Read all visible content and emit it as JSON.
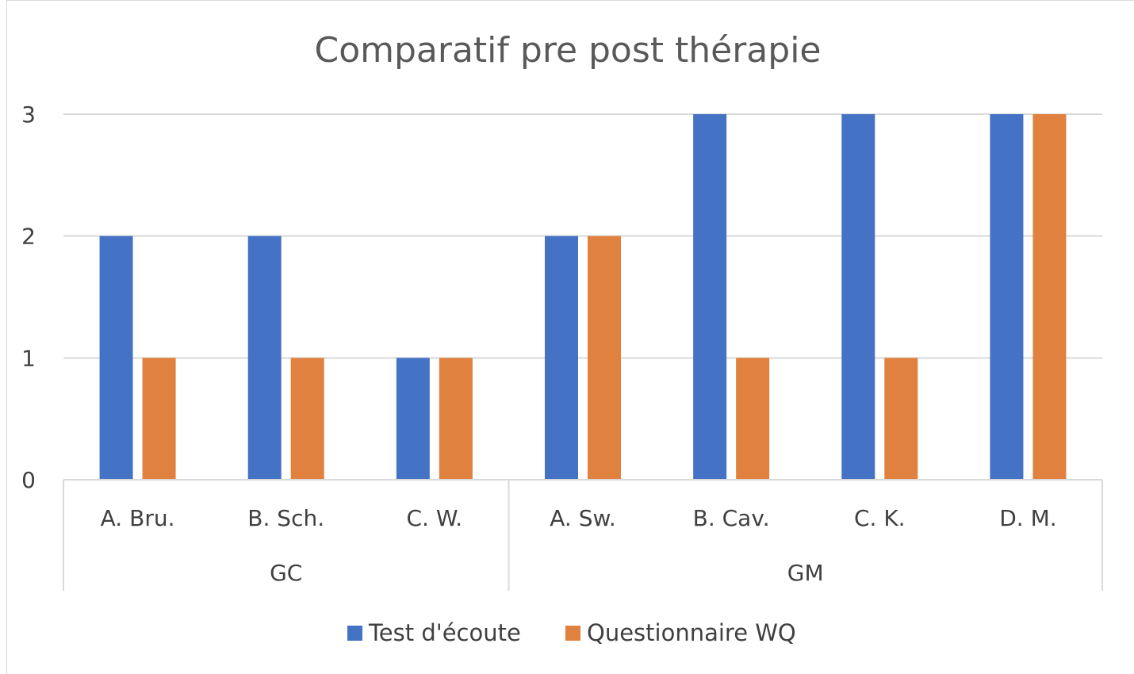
{
  "chart_data": {
    "type": "bar",
    "title": "Comparatif pre post thérapie",
    "categories": [
      "A. Bru.",
      "B. Sch.",
      "C. W.",
      "A. Sw.",
      "B. Cav.",
      "C. K.",
      "D. M."
    ],
    "groups": [
      {
        "label": "GC",
        "categories": [
          "A. Bru.",
          "B. Sch.",
          "C. W."
        ]
      },
      {
        "label": "GM",
        "categories": [
          "A. Sw.",
          "B. Cav.",
          "C. K.",
          "D. M."
        ]
      }
    ],
    "series": [
      {
        "name": "Test d'écoute",
        "color": "#4472c4",
        "values": [
          2,
          2,
          1,
          2,
          3,
          3,
          3
        ]
      },
      {
        "name": "Questionnaire WQ",
        "color": "#e0813f",
        "values": [
          1,
          1,
          1,
          2,
          1,
          1,
          3
        ]
      }
    ],
    "ylim": [
      0,
      3
    ],
    "yticks": [
      "0",
      "1",
      "2",
      "3"
    ],
    "grid": true,
    "legend_position": "bottom"
  }
}
